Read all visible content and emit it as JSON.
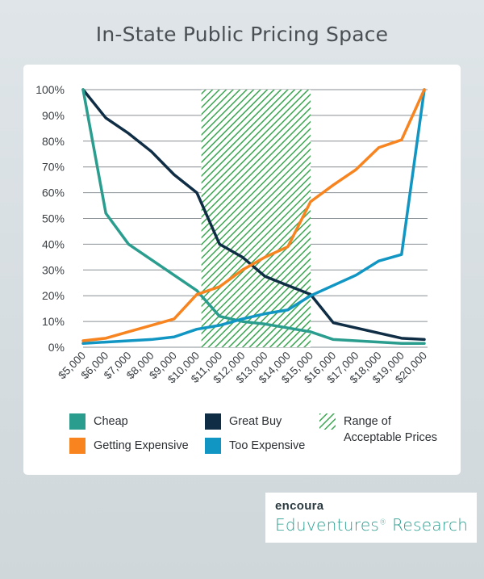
{
  "title": "In-State Public Pricing Space",
  "colors": {
    "cheap": "#2a9d8f",
    "great_buy": "#0f2d44",
    "getting_expensive": "#f7841f",
    "too_expensive": "#1196c4",
    "range_fill": "#3ca652"
  },
  "legend": {
    "cheap": "Cheap",
    "great_buy": "Great Buy",
    "range_line1": "Range of",
    "range_line2": "Acceptable Prices",
    "getting_expensive": "Getting Expensive",
    "too_expensive": "Too Expensive"
  },
  "brand": {
    "logo_text": "encoura",
    "tagline_main": "Eduventures",
    "tagline_mark": "®",
    "tagline_rest": " Research"
  },
  "chart_data": {
    "type": "line",
    "title": "In-State Public Pricing Space",
    "x": [
      5000,
      6000,
      7000,
      8000,
      9000,
      10000,
      11000,
      12000,
      13000,
      14000,
      15000,
      16000,
      17000,
      18000,
      19000,
      20000
    ],
    "x_tick_labels": [
      "$5,000",
      "$6,000",
      "$7,000",
      "$8,000",
      "$9,000",
      "$10,000",
      "$11,000",
      "$12,000",
      "$13,000",
      "$14,000",
      "$15,000",
      "$16,000",
      "$17,000",
      "$18,000",
      "$19,000",
      "$20,000"
    ],
    "y_tick_labels": [
      "0%",
      "10%",
      "20%",
      "30%",
      "40%",
      "50%",
      "60%",
      "70%",
      "80%",
      "90%",
      "100%"
    ],
    "ylim": [
      0,
      100
    ],
    "grid": true,
    "shaded_range": {
      "name": "Range of Acceptable Prices",
      "x_start": 10200,
      "x_end": 15000
    },
    "series": [
      {
        "name": "Cheap",
        "color_key": "cheap",
        "values": [
          100,
          52,
          40,
          34,
          28,
          22,
          12,
          10,
          9,
          7.5,
          6,
          3,
          2.5,
          2,
          1.5,
          1.5
        ]
      },
      {
        "name": "Great Buy",
        "color_key": "great_buy",
        "values": [
          100,
          89,
          83,
          76,
          67,
          60,
          40,
          35,
          27.5,
          24,
          20.5,
          9.5,
          7.5,
          5.5,
          3.5,
          3
        ]
      },
      {
        "name": "Getting Expensive",
        "color_key": "getting_expensive",
        "values": [
          2.5,
          3.5,
          6,
          8.5,
          11,
          20.5,
          23.5,
          30,
          35,
          39,
          56.5,
          63,
          69,
          77.5,
          80.5,
          100
        ]
      },
      {
        "name": "Too Expensive",
        "color_key": "too_expensive",
        "values": [
          1.5,
          2,
          2.5,
          3,
          4,
          7,
          8.5,
          11,
          13,
          14.5,
          20,
          24,
          28,
          33.5,
          36,
          100
        ]
      }
    ],
    "legend_position": "bottom"
  }
}
